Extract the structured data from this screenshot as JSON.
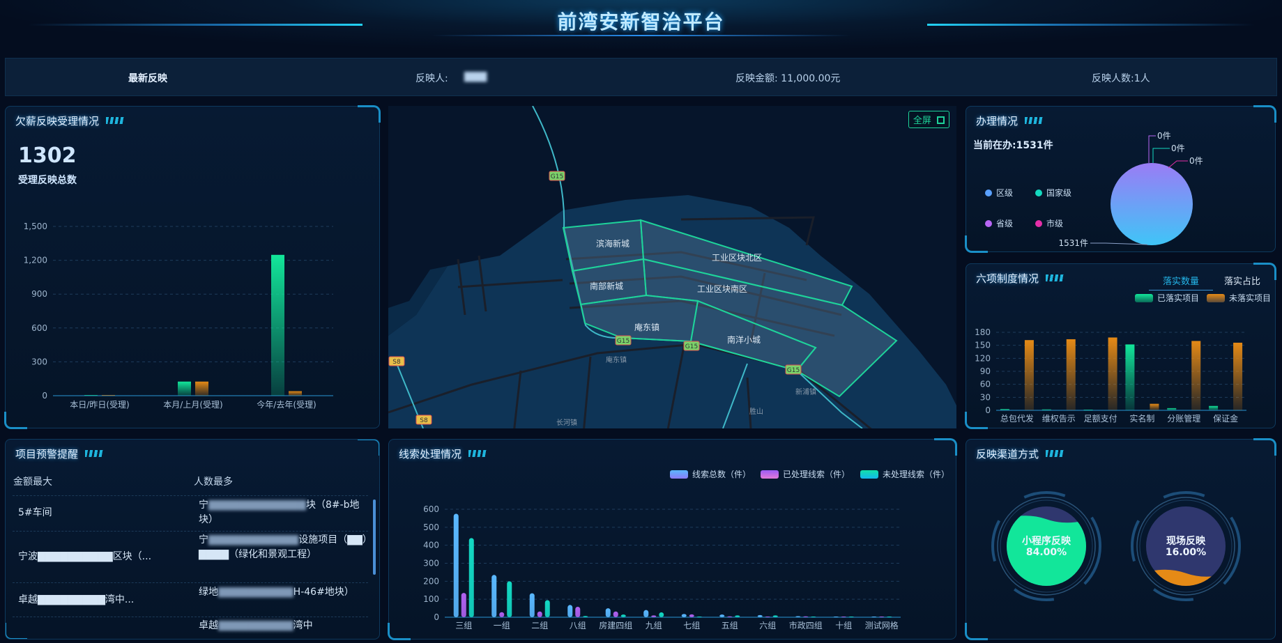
{
  "header": {
    "title": "前湾安新智治平台"
  },
  "info_bar": {
    "label": "最新反映",
    "reporter_label": "反映人:",
    "reporter_value": "▇▇▇",
    "amount": "反映金额:  11,000.00元",
    "count": "反映人数:1人"
  },
  "acceptance": {
    "title": "欠薪反映受理情况",
    "total": "1302",
    "total_label": "受理反映总数",
    "chart_data": {
      "type": "bar",
      "categories": [
        "本日/昨日(受理)",
        "本月/上月(受理)",
        "今年/去年(受理)"
      ],
      "series": [
        {
          "values": [
            0,
            125,
            1248
          ],
          "color": "#12e69a"
        },
        {
          "values": [
            0,
            125,
            40
          ],
          "color": "#e58a16"
        }
      ],
      "yticks": [
        "0",
        "300",
        "600",
        "900",
        "1,200",
        "1,500"
      ],
      "ylim": [
        0,
        1500
      ],
      "grid": true
    }
  },
  "warning": {
    "title": "项目预警提醒",
    "col1": "金额最大",
    "col2": "人数最多",
    "rows": [
      {
        "c1": "5#车间",
        "c2_a": "宁",
        "c2_blur": "▇▇▇▇▇▇▇▇▇▇▇▇▇",
        "c2_b": "块（8#-b地块）"
      },
      {
        "c1": "宁波▇▇▇▇▇▇▇▇▇▇区块（...",
        "c2_a": "宁",
        "c2_blur": "▇▇▇▇▇▇▇▇▇▇▇▇",
        "c2_b": "设施项目（▇▇）▇▇▇▇（绿化和景观工程）"
      },
      {
        "c1": "卓越▇▇▇▇▇▇▇▇▇湾中...",
        "c2_a": "绿地",
        "c2_blur": "▇▇▇▇▇▇▇▇▇▇",
        "c2_b": "H-46#地块）"
      },
      {
        "c1": "",
        "c2_a": "卓越",
        "c2_blur": "▇▇▇▇▇▇▇▇▇▇",
        "c2_b": "湾中"
      }
    ]
  },
  "map": {
    "fullscreen_label": "全屏",
    "fullscreen_icon": "expand-icon",
    "regions": [
      "滨海新城",
      "工业区块北区",
      "南部新城",
      "工业区块南区",
      "庵东镇",
      "南洋小城"
    ],
    "road_badges": [
      "G15",
      "G15",
      "G15",
      "G15",
      "S8",
      "S8"
    ],
    "places": [
      "庵东镇",
      "新浦镇",
      "胜山",
      "长河镇"
    ]
  },
  "clues": {
    "title": "线索处理情况",
    "chart_data": {
      "type": "bar",
      "categories": [
        "三组",
        "一组",
        "二组",
        "八组",
        "房建四组",
        "九组",
        "七组",
        "五组",
        "六组",
        "市政四组",
        "十组",
        "测试网格"
      ],
      "series": [
        {
          "name": "线索总数（件）",
          "values": [
            575,
            235,
            133,
            68,
            50,
            40,
            18,
            15,
            12,
            6,
            3,
            0
          ],
          "color": "#5ab8ff"
        },
        {
          "name": "已处理线索（件）",
          "values": [
            135,
            28,
            32,
            58,
            32,
            10,
            16,
            5,
            2,
            5,
            1,
            0
          ],
          "color": "#b061f0"
        },
        {
          "name": "未处理线索（件）",
          "values": [
            440,
            200,
            95,
            7,
            15,
            27,
            2,
            10,
            10,
            1,
            2,
            0
          ],
          "color": "#13d9c4"
        }
      ],
      "yticks": [
        "0",
        "100",
        "200",
        "300",
        "400",
        "500",
        "600"
      ],
      "ylim": [
        0,
        600
      ],
      "grid": true,
      "legend": "top-right"
    }
  },
  "handling": {
    "title": "办理情况",
    "current": "当前在办:1531件",
    "chart_data": {
      "type": "pie",
      "slices": [
        {
          "name": "区级",
          "value": 1531,
          "label": "1531件",
          "color": "#5aa0ff"
        },
        {
          "name": "国家级",
          "value": 0,
          "label": "0件",
          "color": "#14d9c0"
        },
        {
          "name": "省级",
          "value": 0,
          "label": "0件",
          "color": "#b866f5"
        },
        {
          "name": "市级",
          "value": 0,
          "label": "0件",
          "color": "#e52fa8"
        }
      ]
    }
  },
  "six": {
    "title": "六项制度情况",
    "tabs": [
      "落实数量",
      "落实占比"
    ],
    "active_tab": 0,
    "chart_data": {
      "type": "bar",
      "categories": [
        "总包代发",
        "维权告示",
        "足额支付",
        "实名制",
        "分账管理",
        "保证金"
      ],
      "series": [
        {
          "name": "已落实项目",
          "values": [
            3,
            2,
            0,
            152,
            5,
            10
          ],
          "color": "#12e69a"
        },
        {
          "name": "未落实项目",
          "values": [
            162,
            164,
            168,
            15,
            160,
            156
          ],
          "color": "#e58a16"
        }
      ],
      "yticks": [
        "0",
        "30",
        "60",
        "90",
        "120",
        "150",
        "180"
      ],
      "ylim": [
        0,
        180
      ],
      "grid": true,
      "legend": "top-right"
    }
  },
  "channels": {
    "title": "反映渠道方式",
    "items": [
      {
        "name": "小程序反映",
        "percent": "84.00%",
        "value": 0.84,
        "color": "#12e69a"
      },
      {
        "name": "现场反映",
        "percent": "16.00%",
        "value": 0.16,
        "color": "#e58a16"
      }
    ]
  }
}
